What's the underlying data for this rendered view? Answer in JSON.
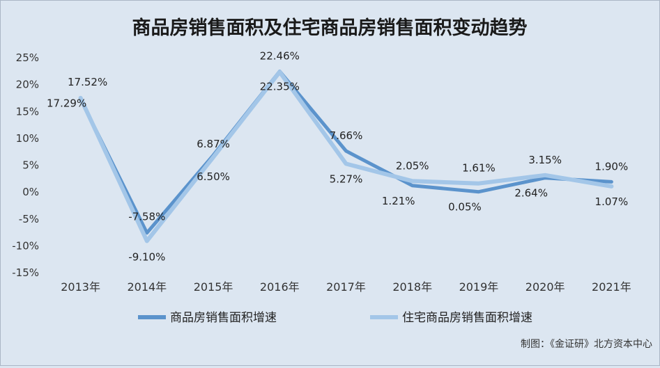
{
  "chart_data": {
    "type": "line",
    "title": "商品房销售面积及住宅商品房销售面积变动趋势",
    "categories": [
      "2013年",
      "2014年",
      "2015年",
      "2016年",
      "2017年",
      "2018年",
      "2019年",
      "2020年",
      "2021年"
    ],
    "y_ticks": [
      "25%",
      "20%",
      "15%",
      "10%",
      "5%",
      "0%",
      "-5%",
      "-10%",
      "-15%"
    ],
    "ylim": [
      -15,
      25
    ],
    "y_step": 5,
    "grid": false,
    "legend_position": "bottom",
    "series": [
      {
        "name": "商品房销售面积增速",
        "color": "#5b93cc",
        "values": [
          17.29,
          -7.58,
          6.87,
          22.46,
          7.66,
          1.21,
          0.05,
          2.64,
          1.9
        ],
        "labels": [
          "17.29%",
          "-7.58%",
          "6.87%",
          "22.46%",
          "7.66%",
          "1.21%",
          "0.05%",
          "2.64%",
          "1.90%"
        ]
      },
      {
        "name": "住宅商品房销售面积增速",
        "color": "#a3c6e8",
        "values": [
          17.52,
          -9.1,
          6.5,
          22.35,
          5.27,
          2.05,
          1.61,
          3.15,
          1.07
        ],
        "labels": [
          "17.52%",
          "-9.10%",
          "6.50%",
          "22.35%",
          "5.27%",
          "2.05%",
          "1.61%",
          "3.15%",
          "1.07%"
        ]
      }
    ],
    "source": "制图：《金证研》北方资本中心"
  }
}
